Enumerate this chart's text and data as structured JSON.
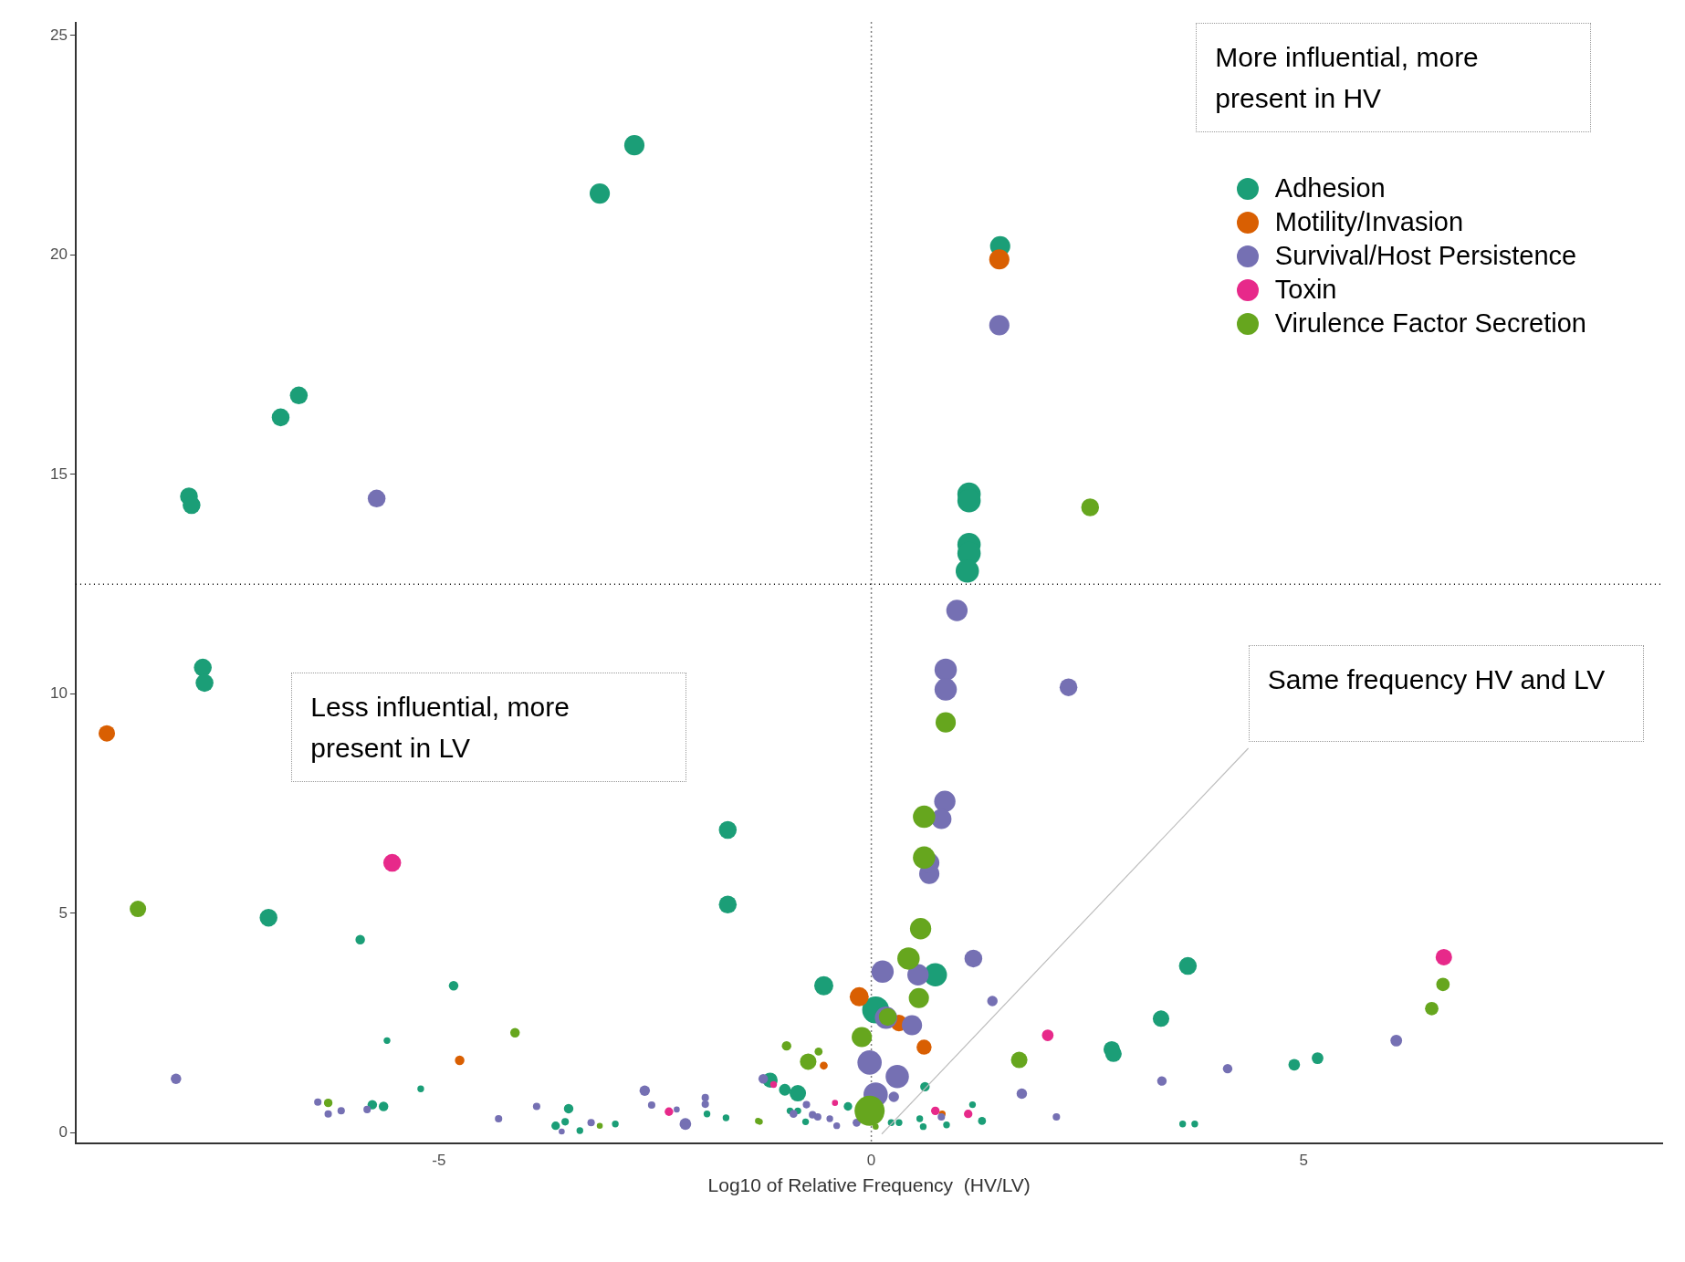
{
  "chart_data": {
    "type": "bubble",
    "xlabel": "Log10 of Relative Frequency  (HV/LV)",
    "xlim": [
      -9.2,
      9.15
    ],
    "xticks": [
      -5,
      0,
      5
    ],
    "ylim": [
      -0.25,
      25.3
    ],
    "yticks": [
      0,
      5,
      10,
      15,
      20,
      25
    ],
    "grid": false,
    "legend": "top right",
    "marker": "circle",
    "ref_lines": [
      {
        "axis": "x",
        "value": 0,
        "line_style": "dotted",
        "color": "#000000"
      },
      {
        "axis": "y",
        "value": 12.5,
        "line_style": "dotted",
        "color": "#000000"
      }
    ],
    "annotations": [
      "More influential, more present in HV",
      "Less influential, more present in LV",
      "Same frequency HV and LV"
    ],
    "series": [
      {
        "name": "Adhesion",
        "color": "#1b9e77",
        "x": [
          -2.74,
          -3.14,
          1.49,
          -6.62,
          -6.83,
          -7.89,
          -7.86,
          1.13,
          1.13,
          1.13,
          1.13,
          1.11,
          -7.73,
          -7.71,
          -1.66,
          -1.66,
          -6.97,
          -5.91,
          -4.83,
          -5.6,
          -5.21,
          -0.55,
          0.74,
          0.05,
          3.66,
          3.35,
          2.78,
          2.8,
          4.89,
          5.16,
          3.6,
          3.74,
          -5.77,
          -5.64,
          -3.5,
          -3.65,
          -3.54,
          -3.37,
          -2.96,
          -1.9,
          -1.68,
          -1.17,
          -0.85,
          -1.0,
          0.62,
          -0.27,
          -0.94,
          -0.85,
          -0.76,
          0.23,
          0.32,
          0.56,
          0.6,
          0.87,
          1.17,
          1.28
        ],
        "values": [
          22.5,
          21.4,
          20.2,
          16.8,
          16.3,
          14.5,
          14.3,
          14.55,
          14.4,
          13.4,
          13.2,
          12.8,
          10.6,
          10.25,
          6.9,
          5.2,
          4.9,
          4.4,
          3.35,
          2.1,
          1.0,
          3.35,
          3.6,
          2.8,
          3.8,
          2.6,
          1.9,
          1.8,
          1.55,
          1.7,
          0.2,
          0.2,
          0.64,
          0.6,
          0.55,
          0.16,
          0.25,
          0.05,
          0.2,
          0.43,
          0.34,
          1.2,
          0.9,
          0.98,
          1.05,
          0.6,
          0.5,
          0.5,
          0.25,
          0.23,
          0.23,
          0.32,
          0.14,
          0.18,
          0.64,
          0.27
        ],
        "sizes": [
          0.45,
          0.45,
          0.45,
          0.35,
          0.35,
          0.35,
          0.35,
          0.6,
          0.6,
          0.6,
          0.6,
          0.6,
          0.35,
          0.35,
          0.35,
          0.35,
          0.35,
          0.1,
          0.1,
          0.05,
          0.05,
          0.4,
          0.6,
          0.8,
          0.35,
          0.3,
          0.3,
          0.3,
          0.15,
          0.15,
          0.05,
          0.05,
          0.1,
          0.1,
          0.1,
          0.08,
          0.06,
          0.05,
          0.05,
          0.05,
          0.05,
          0.25,
          0.3,
          0.15,
          0.1,
          0.08,
          0.05,
          0.05,
          0.05,
          0.05,
          0.05,
          0.05,
          0.05,
          0.05,
          0.05,
          0.07
        ]
      },
      {
        "name": "Motility/Invasion",
        "color": "#d95f02",
        "x": [
          1.48,
          -8.84,
          -4.76,
          -0.14,
          0.32,
          0.61,
          -0.55,
          0.82
        ],
        "values": [
          19.9,
          9.1,
          1.65,
          3.1,
          2.5,
          1.95,
          1.53,
          0.43
        ],
        "sizes": [
          0.45,
          0.3,
          0.1,
          0.4,
          0.3,
          0.25,
          0.07,
          0.05
        ]
      },
      {
        "name": "Survival/Host Persistence",
        "color": "#7570b3",
        "x": [
          1.48,
          -5.72,
          0.99,
          0.86,
          0.86,
          2.28,
          0.85,
          0.81,
          0.67,
          0.67,
          0.13,
          0.54,
          1.18,
          0.17,
          0.47,
          1.4,
          -0.02,
          0.3,
          0.05,
          0.26,
          1.74,
          2.14,
          -1.25,
          -0.75,
          -0.9,
          -0.68,
          -0.62,
          -0.48,
          -0.4,
          -0.17,
          0.81,
          3.36,
          4.12,
          6.07,
          -8.04,
          -6.4,
          -6.28,
          -6.13,
          -5.83,
          -4.31,
          -3.87,
          -3.58,
          -3.24,
          -2.62,
          -2.54,
          -2.25,
          -1.92,
          -1.92,
          -2.15
        ],
        "values": [
          18.4,
          14.45,
          11.9,
          10.55,
          10.1,
          10.15,
          7.55,
          7.15,
          5.9,
          6.15,
          3.67,
          3.6,
          3.97,
          2.62,
          2.45,
          3.0,
          1.6,
          1.28,
          0.87,
          0.82,
          0.89,
          0.36,
          1.23,
          0.64,
          0.43,
          0.41,
          0.36,
          0.32,
          0.16,
          0.23,
          0.36,
          1.18,
          1.46,
          2.1,
          1.23,
          0.7,
          0.43,
          0.5,
          0.53,
          0.32,
          0.6,
          0.03,
          0.23,
          0.96,
          0.63,
          0.53,
          0.8,
          0.65,
          0.2
        ],
        "sizes": [
          0.45,
          0.35,
          0.5,
          0.55,
          0.55,
          0.35,
          0.5,
          0.45,
          0.45,
          0.45,
          0.55,
          0.5,
          0.35,
          0.55,
          0.45,
          0.12,
          0.65,
          0.6,
          0.65,
          0.12,
          0.12,
          0.06,
          0.1,
          0.06,
          0.07,
          0.06,
          0.06,
          0.05,
          0.05,
          0.07,
          0.06,
          0.1,
          0.1,
          0.15,
          0.12,
          0.06,
          0.06,
          0.06,
          0.06,
          0.06,
          0.06,
          0.04,
          0.06,
          0.12,
          0.06,
          0.04,
          0.06,
          0.06,
          0.15
        ]
      },
      {
        "name": "Toxin",
        "color": "#e7298a",
        "x": [
          -5.54,
          6.62,
          2.04,
          0.74,
          1.12,
          -0.42,
          -2.34,
          -1.13
        ],
        "values": [
          6.15,
          4.0,
          2.22,
          0.5,
          0.43,
          0.68,
          0.48,
          1.1
        ],
        "sizes": [
          0.35,
          0.3,
          0.15,
          0.08,
          0.08,
          0.04,
          0.08,
          0.05
        ]
      },
      {
        "name": "Virulence Factor Secretion",
        "color": "#66a61e",
        "x": [
          2.53,
          0.86,
          0.61,
          0.61,
          0.57,
          0.43,
          0.55,
          0.19,
          -0.11,
          -0.02,
          -0.98,
          -0.61,
          -0.73,
          1.71,
          -1.31,
          0.05,
          6.61,
          6.48,
          -8.48,
          -4.12,
          -6.28,
          -3.14,
          -1.29
        ],
        "values": [
          14.25,
          9.35,
          7.2,
          6.27,
          4.65,
          3.97,
          3.07,
          2.64,
          2.18,
          0.5,
          1.98,
          1.85,
          1.62,
          1.66,
          0.27,
          0.14,
          3.38,
          2.83,
          5.1,
          2.28,
          0.68,
          0.16,
          0.25
        ],
        "sizes": [
          0.35,
          0.45,
          0.55,
          0.55,
          0.5,
          0.55,
          0.45,
          0.35,
          0.45,
          1.0,
          0.1,
          0.07,
          0.3,
          0.3,
          0.04,
          0.04,
          0.2,
          0.2,
          0.3,
          0.1,
          0.08,
          0.04,
          0.04
        ]
      }
    ]
  }
}
